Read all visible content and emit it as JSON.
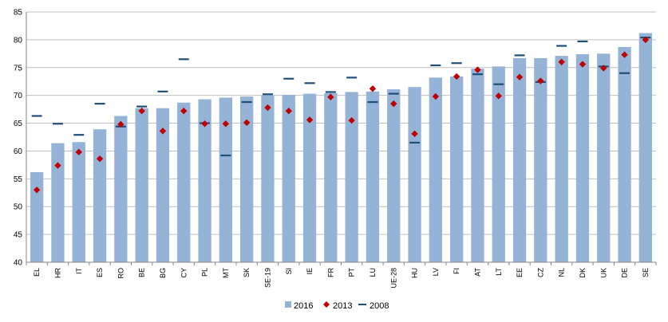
{
  "chart_data": {
    "type": "bar",
    "title": "",
    "xlabel": "",
    "ylabel": "",
    "ylim": [
      40,
      85
    ],
    "yticks": [
      40,
      45,
      50,
      55,
      60,
      65,
      70,
      75,
      80,
      85
    ],
    "grid": true,
    "legend_position": "bottom",
    "categories": [
      "EL",
      "HR",
      "IT",
      "ES",
      "RO",
      "BE",
      "BG",
      "CY",
      "PL",
      "MT",
      "SK",
      "SE-19",
      "SI",
      "IE",
      "FR",
      "PT",
      "LU",
      "UE-28",
      "HU",
      "LV",
      "FI",
      "AT",
      "LT",
      "EE",
      "CZ",
      "NL",
      "DK",
      "UK",
      "DE",
      "SE"
    ],
    "series": [
      {
        "name": "2016",
        "kind": "bar",
        "color": "#95b3d7",
        "values": [
          56.2,
          61.4,
          61.6,
          63.9,
          66.3,
          67.7,
          67.7,
          68.7,
          69.3,
          69.6,
          69.8,
          70.0,
          70.1,
          70.3,
          70.4,
          70.6,
          70.7,
          71.1,
          71.5,
          73.2,
          73.4,
          74.8,
          75.2,
          76.7,
          76.7,
          77.1,
          77.4,
          77.5,
          78.7,
          81.2
        ]
      },
      {
        "name": "2013",
        "kind": "marker",
        "color": "#c00000",
        "values": [
          53.0,
          57.4,
          59.8,
          58.6,
          64.8,
          67.2,
          63.6,
          67.2,
          64.9,
          64.9,
          65.1,
          67.8,
          67.2,
          65.6,
          69.7,
          65.5,
          71.2,
          68.5,
          63.1,
          69.8,
          73.4,
          74.6,
          69.9,
          73.3,
          72.6,
          76.0,
          75.6,
          74.9,
          77.3,
          80.0
        ]
      },
      {
        "name": "2008",
        "kind": "dash",
        "color": "#1f4e79",
        "values": [
          66.3,
          64.9,
          62.9,
          68.5,
          64.4,
          68.0,
          70.7,
          76.5,
          65.0,
          59.2,
          68.8,
          70.2,
          73.0,
          72.2,
          70.6,
          73.2,
          68.8,
          70.3,
          61.5,
          75.4,
          75.8,
          73.8,
          72.0,
          77.2,
          72.4,
          78.9,
          79.7,
          75.2,
          74.0,
          80.4
        ]
      }
    ]
  }
}
